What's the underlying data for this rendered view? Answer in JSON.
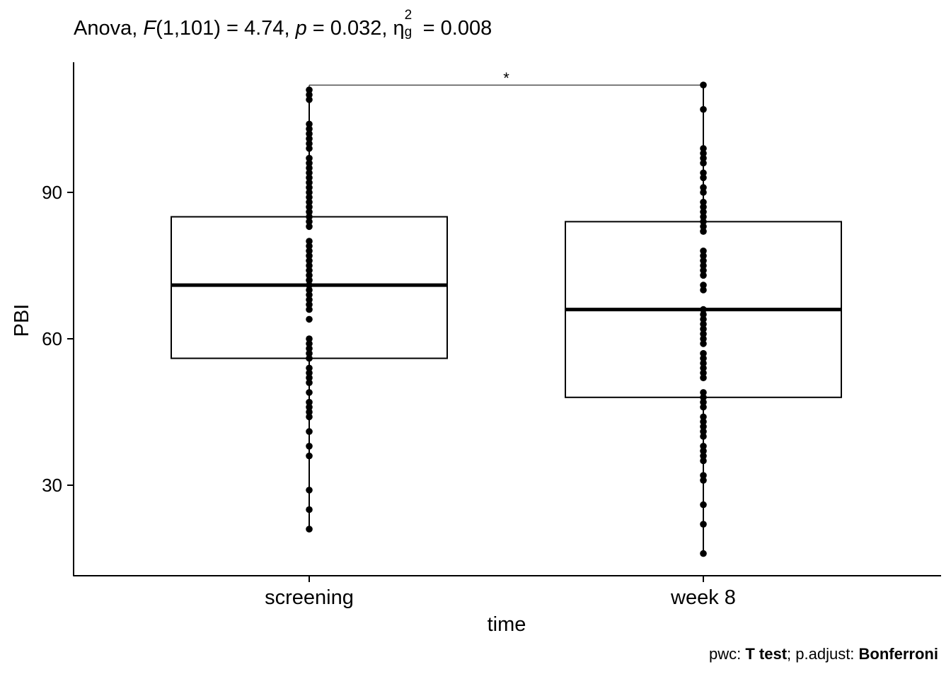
{
  "title": {
    "p1": "Anova, ",
    "F": "F",
    "p2": "(1,101) = 4.74, ",
    "p": "p",
    "p3": " = 0.032, ",
    "eta": "η",
    "eta_sup": "2",
    "eta_sub": "g",
    "p4": " = 0.008"
  },
  "caption": {
    "c1": "pwc: ",
    "c2": "T test",
    "c3": "; p.adjust: ",
    "c4": "Bonferroni"
  },
  "chart_data": {
    "type": "boxplot",
    "xlabel": "time",
    "ylabel": "PBI",
    "categories": [
      "screening",
      "week 8"
    ],
    "yticks": [
      30,
      60,
      90
    ],
    "ylim": [
      12,
      117
    ],
    "boxes": [
      {
        "category": "screening",
        "q1": 56,
        "median": 71,
        "q3": 85,
        "whisker_low": 21,
        "whisker_high": 111,
        "points": [
          111,
          110,
          109,
          104,
          103,
          102,
          101,
          100,
          99,
          97,
          96,
          95,
          94,
          93,
          92,
          91,
          90,
          89,
          88,
          87,
          86,
          85,
          84,
          83,
          80,
          79,
          78,
          77,
          76,
          75,
          74,
          73,
          72,
          71,
          70,
          69,
          68,
          67,
          66,
          64,
          60,
          59,
          58,
          57,
          56,
          54,
          53,
          52,
          51,
          49,
          47,
          46,
          45,
          44,
          41,
          38,
          36,
          29,
          25,
          21
        ]
      },
      {
        "category": "week 8",
        "q1": 48,
        "median": 66,
        "q3": 84,
        "whisker_low": 16,
        "whisker_high": 112,
        "points": [
          112,
          107,
          99,
          98,
          97,
          96,
          94,
          93,
          91,
          90,
          88,
          87,
          86,
          85,
          84,
          83,
          82,
          78,
          77,
          76,
          75,
          74,
          73,
          71,
          70,
          66,
          65,
          64,
          63,
          62,
          61,
          60,
          59,
          57,
          56,
          55,
          54,
          53,
          52,
          49,
          48,
          47,
          46,
          44,
          43,
          42,
          41,
          40,
          38,
          37,
          36,
          35,
          32,
          31,
          26,
          22,
          16
        ]
      }
    ],
    "comparison": {
      "from": "screening",
      "to": "week 8",
      "y": 112,
      "label": "*"
    },
    "grid": false,
    "legend": "none"
  }
}
